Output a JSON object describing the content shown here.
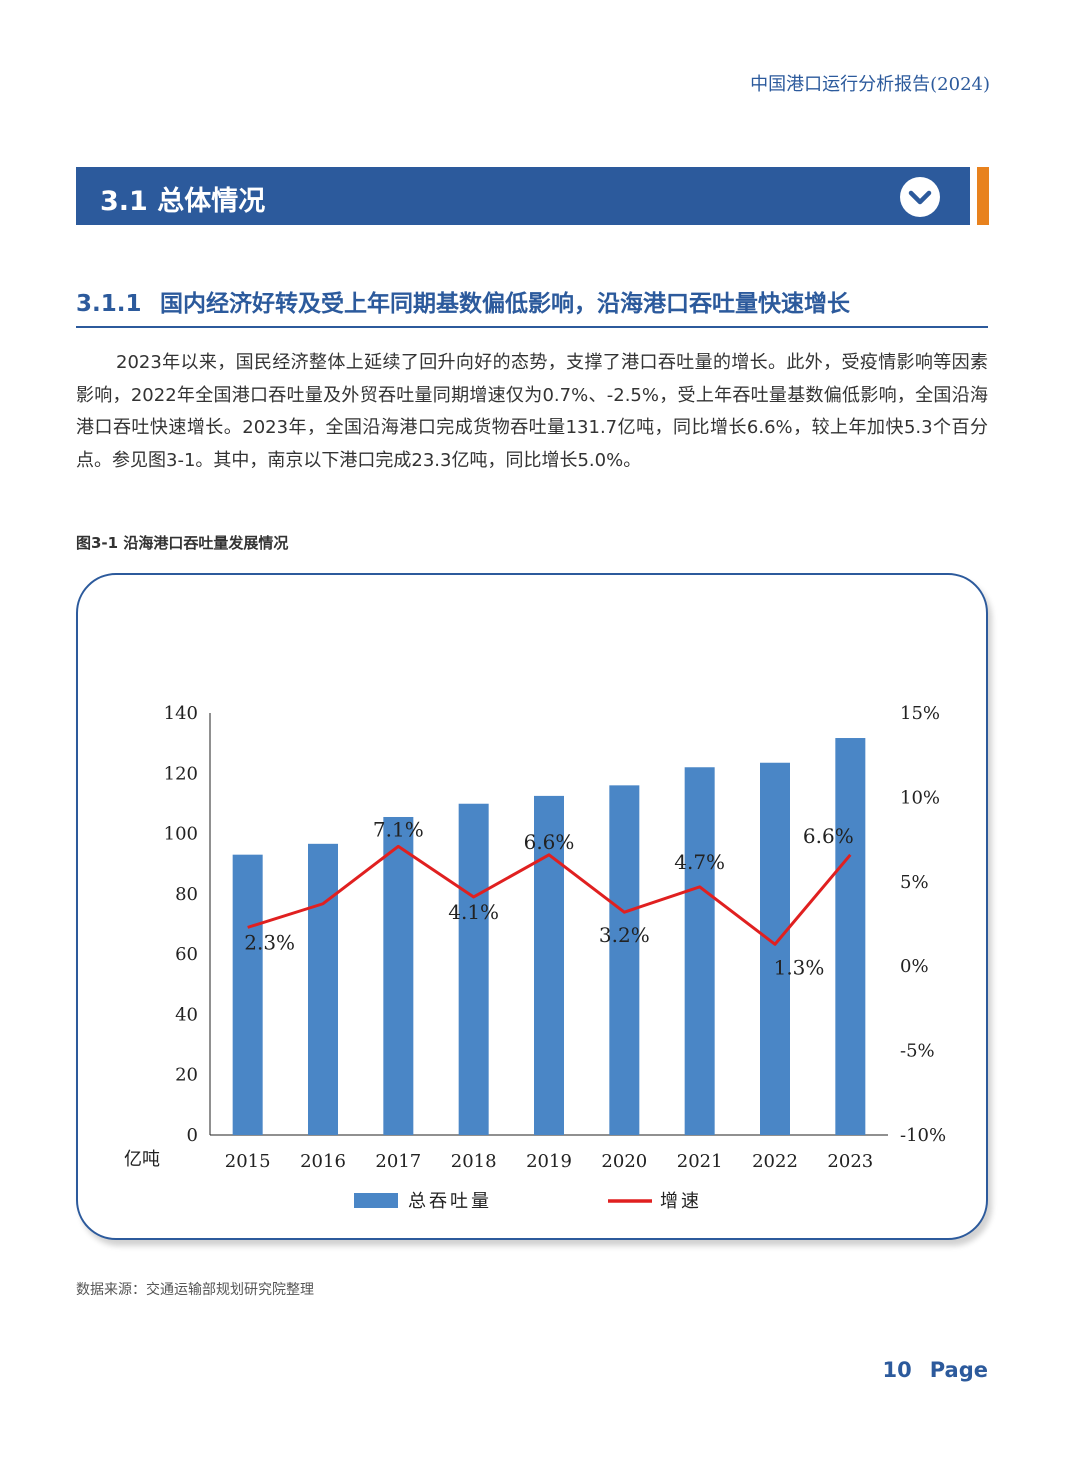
{
  "header": {
    "title": "中国港口运行分析报告(2024)"
  },
  "section": {
    "title": "3.1 总体情况",
    "chevron_icon": "chevron-down-icon"
  },
  "subsection": {
    "number": "3.1.1",
    "title": "国内经济好转及受上年同期基数偏低影响，沿海港口吞吐量快速增长"
  },
  "paragraph": "2023年以来，国民经济整体上延续了回升向好的态势，支撑了港口吞吐量的增长。此外，受疫情影响等因素影响，2022年全国港口吞吐量及外贸吞吐量同期增速仅为0.7%、-2.5%，受上年吞吐量基数偏低影响，全国沿海港口吞吐快速增长。2023年，全国沿海港口完成货物吞吐量131.7亿吨，同比增长6.6%，较上年加快5.3个百分点。参见图3-1。其中，南京以下港口完成23.3亿吨，同比增长5.0%。",
  "figure": {
    "caption": "图3-1  沿海港口吞吐量发展情况"
  },
  "chart_data": {
    "type": "bar",
    "categories": [
      "2015",
      "2016",
      "2017",
      "2018",
      "2019",
      "2020",
      "2021",
      "2022",
      "2023"
    ],
    "series": [
      {
        "name": "总吞吐量",
        "type": "bar",
        "axis": "left",
        "color": "#4a86c6",
        "values": [
          93.0,
          96.6,
          105.5,
          109.9,
          112.5,
          116.0,
          122.0,
          123.5,
          131.7
        ]
      },
      {
        "name": "增速",
        "type": "line",
        "axis": "right",
        "color": "#e02020",
        "values": [
          2.3,
          3.7,
          7.1,
          4.1,
          6.6,
          3.2,
          4.7,
          1.3,
          6.6
        ],
        "labels": [
          "2.3%",
          "",
          "7.1%",
          "4.1%",
          "6.6%",
          "3.2%",
          "4.7%",
          "1.3%",
          "6.6%"
        ]
      }
    ],
    "y_left": {
      "ylim": [
        0,
        140
      ],
      "ticks": [
        "0",
        "20",
        "40",
        "60",
        "80",
        "100",
        "120",
        "140"
      ],
      "unit": "亿吨"
    },
    "y_right": {
      "ylim": [
        -10,
        15
      ],
      "ticks": [
        "-10%",
        "-5%",
        "0%",
        "5%",
        "10%",
        "15%"
      ]
    },
    "legend": {
      "placement": "bottom",
      "items": [
        "总吞吐量",
        "增速"
      ]
    },
    "grid": false
  },
  "source": "数据来源：交通运输部规划研究院整理",
  "page": {
    "number": "10",
    "label": "Page"
  }
}
